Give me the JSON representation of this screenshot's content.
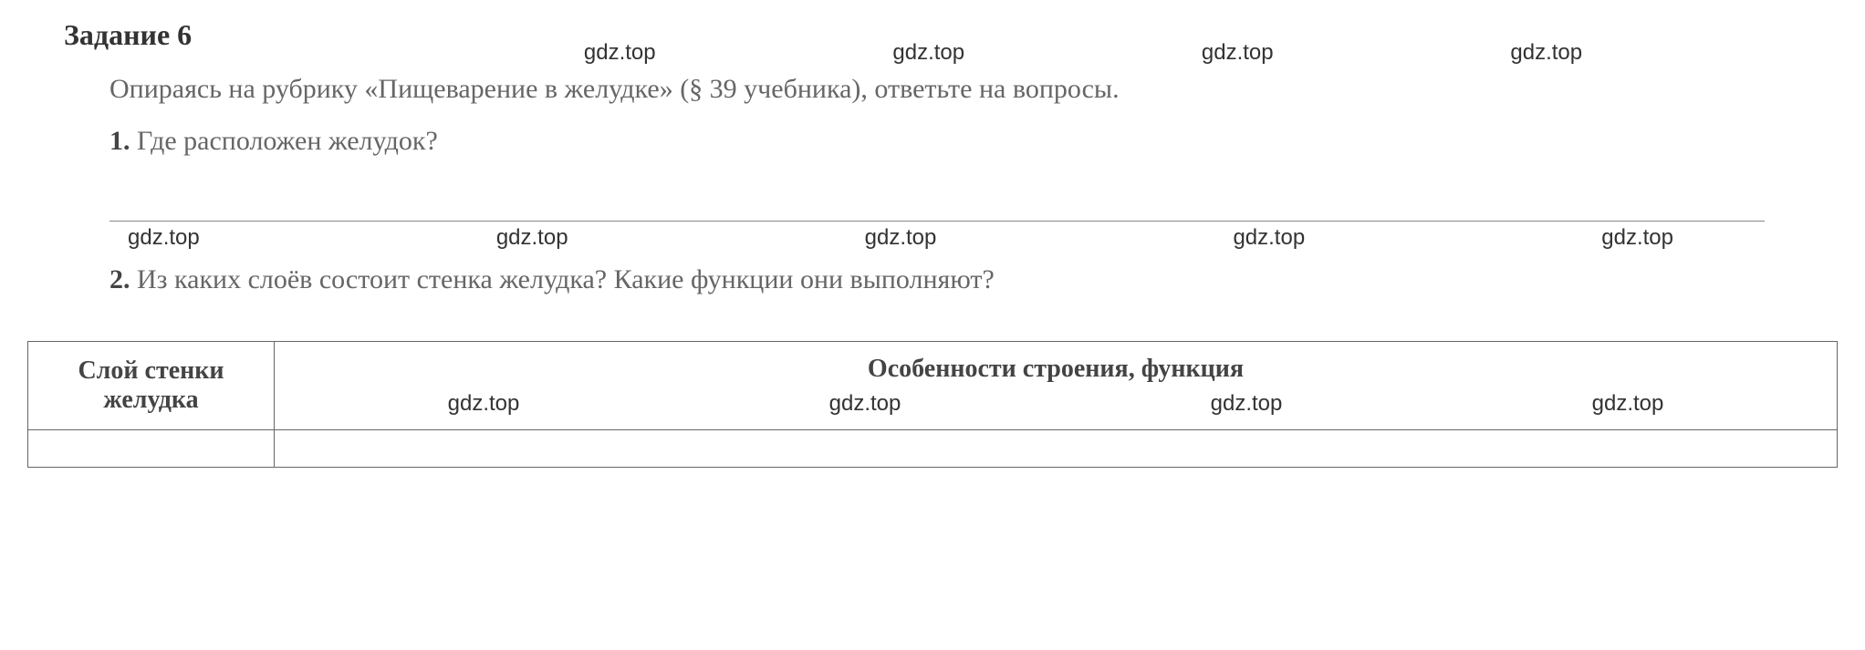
{
  "task": {
    "title": "Задание 6",
    "description": "Опираясь на рубрику «Пищеварение в желудке» (§ 39 учебника), ответьте на вопросы."
  },
  "questions": [
    {
      "number": "1.",
      "text": "Где расположен желудок?"
    },
    {
      "number": "2.",
      "text": "Из каких слоёв состоит стенка желудка? Какие функции они выполняют?"
    }
  ],
  "table": {
    "columns": [
      "Слой стенки желудка",
      "Особенности строения, функция"
    ]
  },
  "watermark": {
    "text": "gdz.top"
  },
  "colors": {
    "text_primary": "#666666",
    "text_bold": "#333333",
    "border": "#666666",
    "background": "#ffffff"
  }
}
